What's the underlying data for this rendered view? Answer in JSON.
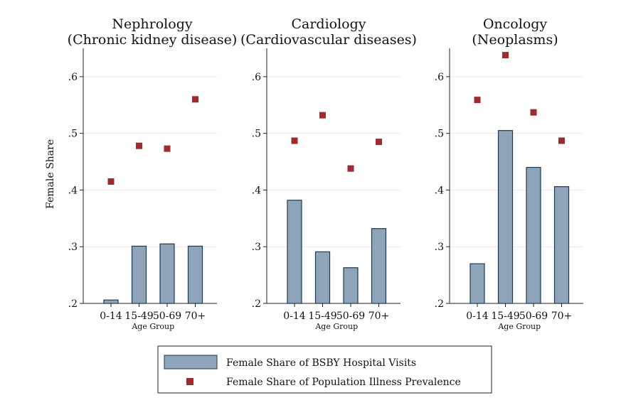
{
  "chart_data": {
    "type": "bar",
    "ylabel": "Female Share",
    "xlabel": "Age Group",
    "categories": [
      "0-14",
      "15-49",
      "50-69",
      "70+"
    ],
    "ylim": [
      0.2,
      0.65
    ],
    "yticks": [
      ".2",
      ".3",
      ".4",
      ".5",
      ".6"
    ],
    "colors": {
      "bar_fill": "#8ea4b8",
      "bar_stroke": "#1d3a52",
      "marker": "#a12a2f",
      "grid": "#e9e9e9"
    },
    "panels": [
      {
        "title_line1": "Nephrology",
        "title_line2": "(Chronic kidney disease)",
        "series": [
          {
            "name": "Female Share of BSBY Hospital Visits",
            "kind": "bar",
            "values": [
              0.206,
              0.301,
              0.305,
              0.301
            ]
          },
          {
            "name": "Female Share of Population Illness Prevalence",
            "kind": "marker",
            "values": [
              0.415,
              0.478,
              0.473,
              0.56
            ]
          }
        ]
      },
      {
        "title_line1": "Cardiology",
        "title_line2": "(Cardiovascular diseases)",
        "series": [
          {
            "name": "Female Share of BSBY Hospital Visits",
            "kind": "bar",
            "values": [
              0.382,
              0.291,
              0.263,
              0.332
            ]
          },
          {
            "name": "Female Share of Population Illness Prevalence",
            "kind": "marker",
            "values": [
              0.487,
              0.532,
              0.438,
              0.485
            ]
          }
        ]
      },
      {
        "title_line1": "Oncology",
        "title_line2": "(Neoplasms)",
        "series": [
          {
            "name": "Female Share of BSBY Hospital Visits",
            "kind": "bar",
            "values": [
              0.27,
              0.505,
              0.44,
              0.406
            ]
          },
          {
            "name": "Female Share of Population Illness Prevalence",
            "kind": "marker",
            "values": [
              0.559,
              0.638,
              0.537,
              0.487
            ]
          }
        ]
      }
    ],
    "legend": {
      "position": "bottom",
      "items": [
        "Female Share of BSBY Hospital Visits",
        "Female Share of Population Illness Prevalence"
      ]
    }
  }
}
